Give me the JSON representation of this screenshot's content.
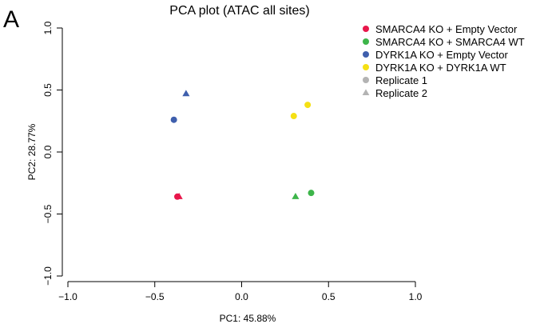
{
  "chart_data": {
    "type": "scatter",
    "panel_label": "A",
    "title": "PCA plot (ATAC all sites)",
    "xlabel": "PC1: 45.88%",
    "ylabel": "PC2: 28.77%",
    "xlim": [
      -1.0,
      1.0
    ],
    "ylim": [
      -1.0,
      1.0
    ],
    "xticks": [
      -1.0,
      -0.5,
      0.0,
      0.5,
      1.0
    ],
    "xtick_labels": [
      "−1.0",
      "−0.5",
      "0.0",
      "0.5",
      "1.0"
    ],
    "yticks": [
      -1.0,
      -0.5,
      0.0,
      0.5,
      1.0
    ],
    "ytick_labels": [
      "−1.0",
      "−0.5",
      "0.0",
      "0.5",
      "1.0"
    ],
    "grid": false,
    "legend_position": "top-right",
    "series": [
      {
        "name": "SMARCA4 KO + Empty Vector",
        "color": "#E8174B",
        "points": [
          {
            "x": -0.37,
            "y": -0.36,
            "replicate": 1
          },
          {
            "x": -0.36,
            "y": -0.36,
            "replicate": 2
          }
        ]
      },
      {
        "name": "SMARCA4 KO + SMARCA4 WT",
        "color": "#3DB54A",
        "points": [
          {
            "x": 0.4,
            "y": -0.33,
            "replicate": 1
          },
          {
            "x": 0.31,
            "y": -0.36,
            "replicate": 2
          }
        ]
      },
      {
        "name": "DYRK1A KO + Empty Vector",
        "color": "#3F5FAD",
        "points": [
          {
            "x": -0.39,
            "y": 0.26,
            "replicate": 1
          },
          {
            "x": -0.32,
            "y": 0.47,
            "replicate": 2
          }
        ]
      },
      {
        "name": "DYRK1A KO + DYRK1A WT",
        "color": "#F5E014",
        "points": [
          {
            "x": 0.38,
            "y": 0.38,
            "replicate": 1
          },
          {
            "x": 0.3,
            "y": 0.29,
            "replicate": 1
          }
        ]
      }
    ],
    "shape_legend": [
      {
        "name": "Replicate 1",
        "shape": "circle",
        "color": "#B3B3B3"
      },
      {
        "name": "Replicate 2",
        "shape": "triangle",
        "color": "#B3B3B3"
      }
    ]
  }
}
